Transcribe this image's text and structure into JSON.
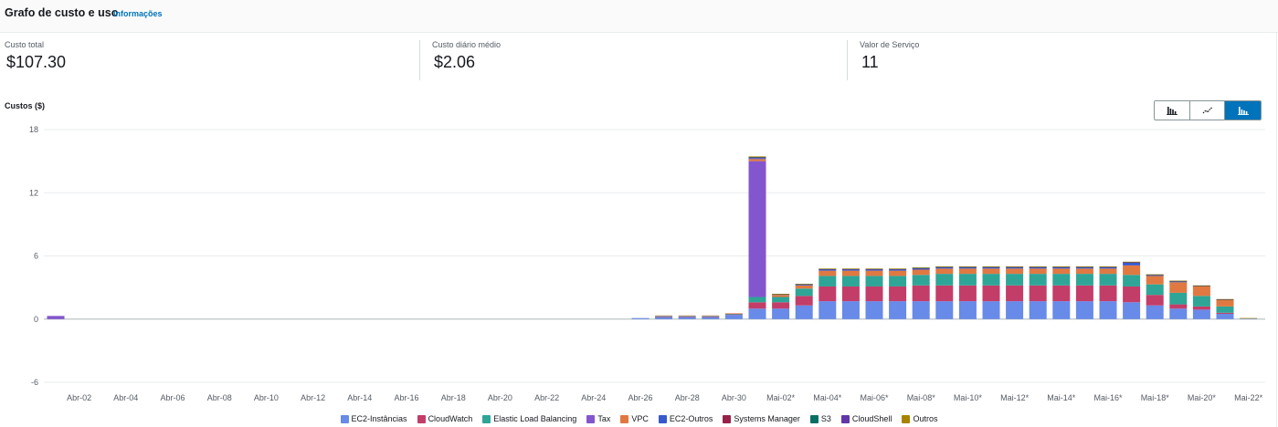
{
  "header": {
    "title": "Grafo de custo e uso",
    "info_link": "Informações"
  },
  "metrics": [
    {
      "label": "Custo total",
      "value": "$107.30"
    },
    {
      "label": "Custo diário médio",
      "value": "$2.06"
    },
    {
      "label": "Valor de Serviço",
      "value": "11"
    }
  ],
  "costs_label": "Custos ($)",
  "view_toggle": {
    "options": [
      {
        "name": "bar-chart-icon",
        "active": false
      },
      {
        "name": "line-chart-icon",
        "active": false
      },
      {
        "name": "stacked-bar-chart-icon",
        "active": true
      }
    ]
  },
  "chart_data": {
    "type": "bar",
    "stacked": true,
    "ylabel": "Custos ($)",
    "ylim": [
      -6,
      18
    ],
    "yticks": [
      -6,
      0,
      6,
      12,
      18
    ],
    "grid": true,
    "legend_position": "bottom",
    "categories": [
      "Abr-01",
      "Abr-02",
      "Abr-03",
      "Abr-04",
      "Abr-05",
      "Abr-06",
      "Abr-07",
      "Abr-08",
      "Abr-09",
      "Abr-10",
      "Abr-11",
      "Abr-12",
      "Abr-13",
      "Abr-14",
      "Abr-15",
      "Abr-16",
      "Abr-17",
      "Abr-18",
      "Abr-19",
      "Abr-20",
      "Abr-21",
      "Abr-22",
      "Abr-23",
      "Abr-24",
      "Abr-25",
      "Abr-26",
      "Abr-27",
      "Abr-28",
      "Abr-29",
      "Abr-30",
      "Mai-01",
      "Mai-02*",
      "Mai-03*",
      "Mai-04*",
      "Mai-05*",
      "Mai-06*",
      "Mai-07*",
      "Mai-08*",
      "Mai-09*",
      "Mai-10*",
      "Mai-11*",
      "Mai-12*",
      "Mai-13*",
      "Mai-14*",
      "Mai-15*",
      "Mai-16*",
      "Mai-17*",
      "Mai-18*",
      "Mai-19*",
      "Mai-20*",
      "Mai-21*",
      "Mai-22*"
    ],
    "xtick_labels": [
      "Abr-02",
      "Abr-04",
      "Abr-06",
      "Abr-08",
      "Abr-10",
      "Abr-12",
      "Abr-14",
      "Abr-16",
      "Abr-18",
      "Abr-20",
      "Abr-22",
      "Abr-24",
      "Abr-26",
      "Abr-28",
      "Abr-30",
      "Mai-02*",
      "Mai-04*",
      "Mai-06*",
      "Mai-08*",
      "Mai-10*",
      "Mai-12*",
      "Mai-14*",
      "Mai-16*",
      "Mai-18*",
      "Mai-20*",
      "Mai-22*"
    ],
    "series": [
      {
        "name": "EC2-Instâncias",
        "color": "#688ae8",
        "values": [
          0,
          0,
          0,
          0,
          0,
          0,
          0,
          0,
          0,
          0,
          0,
          0,
          0,
          0,
          0,
          0,
          0,
          0,
          0,
          0,
          0,
          0,
          0,
          0,
          0,
          0.1,
          0.2,
          0.2,
          0.2,
          0.4,
          1.0,
          1.0,
          1.3,
          1.7,
          1.7,
          1.7,
          1.7,
          1.7,
          1.7,
          1.7,
          1.7,
          1.7,
          1.7,
          1.7,
          1.7,
          1.7,
          1.6,
          1.3,
          1.0,
          0.9,
          0.5,
          0.05
        ]
      },
      {
        "name": "CloudWatch",
        "color": "#c33d69",
        "values": [
          0,
          0,
          0,
          0,
          0,
          0,
          0,
          0,
          0,
          0,
          0,
          0,
          0,
          0,
          0,
          0,
          0,
          0,
          0,
          0,
          0,
          0,
          0,
          0,
          0,
          0,
          0.05,
          0.05,
          0.05,
          0.05,
          0.6,
          0.6,
          0.9,
          1.4,
          1.4,
          1.4,
          1.4,
          1.5,
          1.5,
          1.5,
          1.5,
          1.5,
          1.5,
          1.5,
          1.5,
          1.5,
          1.5,
          1.0,
          0.4,
          0.3,
          0.1,
          0
        ]
      },
      {
        "name": "Elastic Load Balancing",
        "color": "#2ea597",
        "values": [
          0,
          0,
          0,
          0,
          0,
          0,
          0,
          0,
          0,
          0,
          0,
          0,
          0,
          0,
          0,
          0,
          0,
          0,
          0,
          0,
          0,
          0,
          0,
          0,
          0,
          0,
          0.05,
          0.05,
          0.05,
          0.05,
          0.5,
          0.5,
          0.7,
          1.0,
          1.0,
          1.0,
          1.0,
          1.0,
          1.1,
          1.1,
          1.1,
          1.1,
          1.1,
          1.1,
          1.1,
          1.1,
          1.1,
          1.0,
          1.1,
          1.0,
          0.6,
          0
        ]
      },
      {
        "name": "Tax",
        "color": "#8456ce",
        "values": [
          0.3,
          0,
          0,
          0,
          0,
          0,
          0,
          0,
          0,
          0,
          0,
          0,
          0,
          0,
          0,
          0,
          0,
          0,
          0,
          0,
          0,
          0,
          0,
          0,
          0,
          0,
          0,
          0,
          0,
          0,
          12.9,
          0,
          0,
          0,
          0,
          0,
          0,
          0,
          0,
          0,
          0,
          0,
          0,
          0,
          0,
          0,
          0,
          0,
          0,
          0,
          0,
          0
        ]
      },
      {
        "name": "VPC",
        "color": "#e07941",
        "values": [
          0,
          0,
          0,
          0,
          0,
          0,
          0,
          0,
          0,
          0,
          0,
          0,
          0,
          0,
          0,
          0,
          0,
          0,
          0,
          0,
          0,
          0,
          0,
          0,
          0,
          0,
          0.05,
          0.05,
          0.05,
          0.05,
          0.2,
          0.2,
          0.3,
          0.5,
          0.5,
          0.5,
          0.5,
          0.5,
          0.5,
          0.5,
          0.5,
          0.5,
          0.5,
          0.5,
          0.5,
          0.5,
          0.9,
          0.8,
          1.0,
          0.9,
          0.6,
          0
        ]
      },
      {
        "name": "EC2-Outros",
        "color": "#3759ce",
        "values": [
          0,
          0,
          0,
          0,
          0,
          0,
          0,
          0,
          0,
          0,
          0,
          0,
          0,
          0,
          0,
          0,
          0,
          0,
          0,
          0,
          0,
          0,
          0,
          0,
          0,
          0,
          0,
          0,
          0,
          0,
          0.1,
          0.05,
          0.1,
          0.15,
          0.15,
          0.15,
          0.15,
          0.15,
          0.15,
          0.15,
          0.15,
          0.15,
          0.15,
          0.15,
          0.15,
          0.15,
          0.3,
          0.1,
          0.1,
          0.05,
          0.05,
          0
        ]
      },
      {
        "name": "Systems Manager",
        "color": "#962249",
        "values": [
          0,
          0,
          0,
          0,
          0,
          0,
          0,
          0,
          0,
          0,
          0,
          0,
          0,
          0,
          0,
          0,
          0,
          0,
          0,
          0,
          0,
          0,
          0,
          0,
          0,
          0,
          0,
          0,
          0,
          0,
          0.05,
          0.02,
          0.02,
          0.02,
          0.02,
          0.02,
          0.02,
          0.02,
          0.02,
          0.02,
          0.02,
          0.02,
          0.02,
          0.02,
          0.02,
          0.02,
          0.02,
          0.02,
          0.02,
          0.02,
          0.02,
          0
        ]
      },
      {
        "name": "S3",
        "color": "#096f64",
        "values": [
          0,
          0,
          0,
          0,
          0,
          0,
          0,
          0,
          0,
          0,
          0,
          0,
          0,
          0,
          0,
          0,
          0,
          0,
          0,
          0,
          0,
          0,
          0,
          0,
          0,
          0,
          0,
          0,
          0,
          0,
          0.05,
          0.02,
          0.02,
          0.02,
          0.02,
          0.02,
          0.02,
          0.02,
          0.02,
          0.02,
          0.02,
          0.02,
          0.02,
          0.02,
          0.02,
          0.02,
          0.02,
          0.02,
          0.02,
          0.02,
          0.02,
          0
        ]
      },
      {
        "name": "CloudShell",
        "color": "#6237a7",
        "values": [
          0,
          0,
          0,
          0,
          0,
          0,
          0,
          0,
          0,
          0,
          0,
          0,
          0,
          0,
          0,
          0,
          0,
          0,
          0,
          0,
          0,
          0,
          0,
          0,
          0,
          0,
          0,
          0,
          0,
          0,
          0,
          0,
          0,
          0,
          0,
          0,
          0,
          0,
          0,
          0,
          0,
          0,
          0,
          0,
          0,
          0,
          0,
          0,
          0,
          0,
          0,
          0
        ]
      },
      {
        "name": "Outros",
        "color": "#a88300",
        "values": [
          0,
          0,
          0,
          0,
          0,
          0,
          0,
          0,
          0,
          0,
          0,
          0,
          0,
          0,
          0,
          0,
          0,
          0,
          0,
          0,
          0,
          0,
          0,
          0,
          0,
          0,
          0,
          0,
          0,
          0,
          0.05,
          0.01,
          0.01,
          0.01,
          0.01,
          0.01,
          0.01,
          0.01,
          0.01,
          0.01,
          0.01,
          0.01,
          0.01,
          0.01,
          0.01,
          0.01,
          0.01,
          0.01,
          0.01,
          0.01,
          0.01,
          0.05
        ]
      }
    ]
  }
}
